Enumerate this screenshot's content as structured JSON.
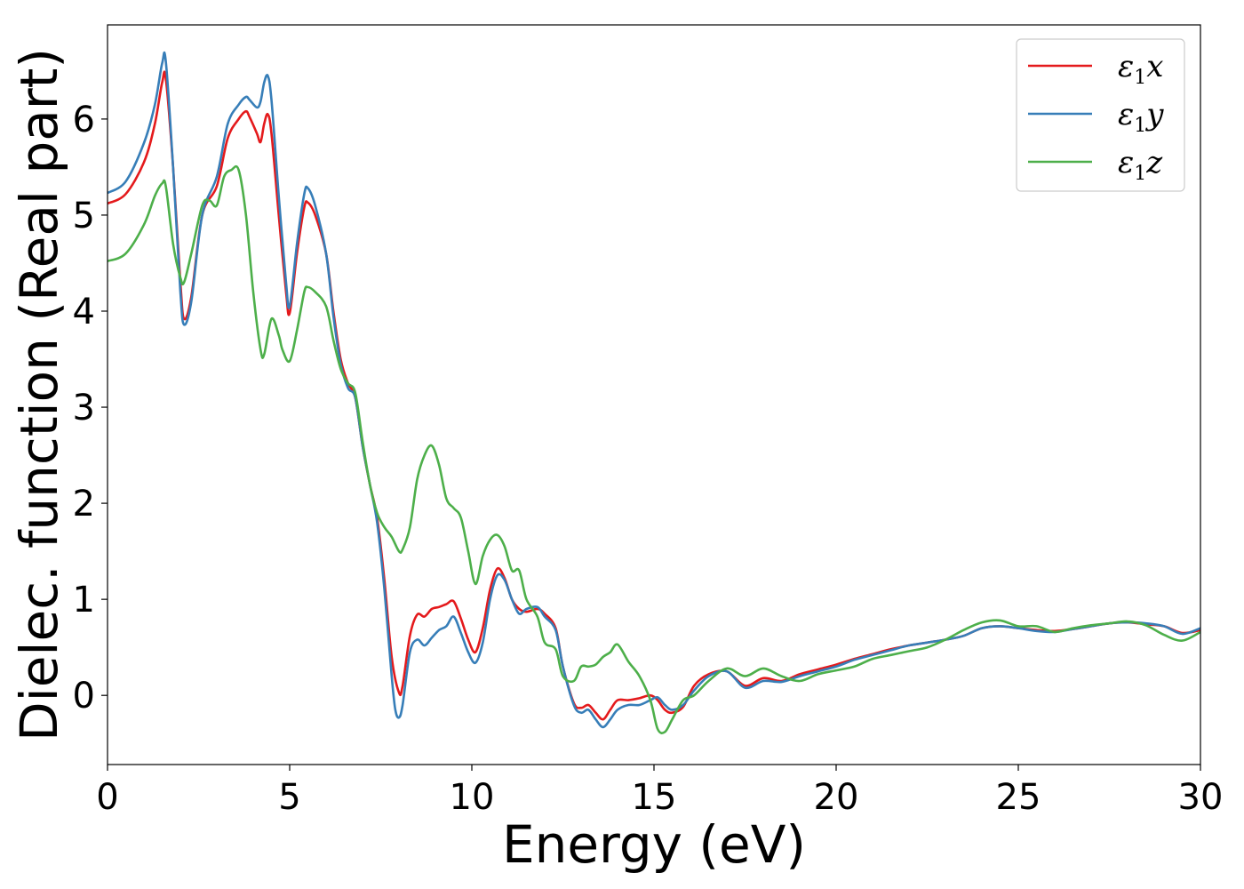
{
  "chart_data": {
    "type": "line",
    "xlabel": "Energy (eV)",
    "ylabel": "Dielec. function (Real part)",
    "xlim": [
      0,
      30
    ],
    "ylim": [
      -0.72,
      6.98
    ],
    "xticks": [
      0,
      5,
      10,
      15,
      20,
      25,
      30
    ],
    "yticks": [
      0,
      1,
      2,
      3,
      4,
      5,
      6
    ],
    "grid": false,
    "legend_position": "top-right",
    "series": [
      {
        "name": "ε1x",
        "base": "ε",
        "sub": "1",
        "var": "x",
        "color": "#e41a1c",
        "x": [
          0,
          0.5,
          1.0,
          1.3,
          1.5,
          1.6,
          1.8,
          2.0,
          2.1,
          2.3,
          2.6,
          3.0,
          3.3,
          3.6,
          3.8,
          3.9,
          4.1,
          4.2,
          4.3,
          4.4,
          4.5,
          4.7,
          4.9,
          5.0,
          5.2,
          5.4,
          5.5,
          5.7,
          6.0,
          6.2,
          6.4,
          6.6,
          6.8,
          7.0,
          7.2,
          7.4,
          7.6,
          7.8,
          8.0,
          8.1,
          8.3,
          8.5,
          8.7,
          8.9,
          9.1,
          9.3,
          9.5,
          9.7,
          9.9,
          10.1,
          10.3,
          10.5,
          10.7,
          10.9,
          11.1,
          11.3,
          11.5,
          11.8,
          12.0,
          12.3,
          12.5,
          12.8,
          13.0,
          13.2,
          13.4,
          13.6,
          13.8,
          14.0,
          14.3,
          14.6,
          14.9,
          15.1,
          15.3,
          15.5,
          15.8,
          16.1,
          16.5,
          17.0,
          17.5,
          18.0,
          18.5,
          19.0,
          19.5,
          20.0,
          20.5,
          21.0,
          21.5,
          22.0,
          22.5,
          23.0,
          23.5,
          24.0,
          24.5,
          25.0,
          25.5,
          26.0,
          26.5,
          27.0,
          27.5,
          28.0,
          28.5,
          29.0,
          29.5,
          30.0
        ],
        "y": [
          5.12,
          5.22,
          5.55,
          5.95,
          6.38,
          6.42,
          5.5,
          4.3,
          3.92,
          4.15,
          5.0,
          5.3,
          5.8,
          6.0,
          6.08,
          6.02,
          5.85,
          5.76,
          5.95,
          6.05,
          5.85,
          5.0,
          4.2,
          3.98,
          4.6,
          5.08,
          5.13,
          5.0,
          4.6,
          4.0,
          3.5,
          3.25,
          3.1,
          2.6,
          2.2,
          1.85,
          1.2,
          0.4,
          0.03,
          0.1,
          0.62,
          0.84,
          0.82,
          0.9,
          0.92,
          0.95,
          0.98,
          0.8,
          0.58,
          0.45,
          0.7,
          1.1,
          1.32,
          1.22,
          1.0,
          0.9,
          0.87,
          0.9,
          0.85,
          0.7,
          0.3,
          -0.08,
          -0.13,
          -0.1,
          -0.18,
          -0.25,
          -0.15,
          -0.05,
          -0.05,
          -0.03,
          0.0,
          -0.05,
          -0.15,
          -0.18,
          -0.12,
          0.1,
          0.22,
          0.25,
          0.1,
          0.18,
          0.15,
          0.22,
          0.27,
          0.32,
          0.38,
          0.43,
          0.48,
          0.52,
          0.55,
          0.58,
          0.62,
          0.7,
          0.72,
          0.7,
          0.68,
          0.67,
          0.69,
          0.72,
          0.75,
          0.76,
          0.74,
          0.72,
          0.65,
          0.68
        ]
      },
      {
        "name": "ε1y",
        "base": "ε",
        "sub": "1",
        "var": "y",
        "color": "#377eb8",
        "x": [
          0,
          0.5,
          1.0,
          1.3,
          1.5,
          1.6,
          1.8,
          2.0,
          2.1,
          2.3,
          2.6,
          3.0,
          3.3,
          3.6,
          3.8,
          3.9,
          4.1,
          4.2,
          4.3,
          4.4,
          4.5,
          4.7,
          4.9,
          5.0,
          5.2,
          5.4,
          5.5,
          5.7,
          6.0,
          6.2,
          6.4,
          6.6,
          6.8,
          7.0,
          7.2,
          7.4,
          7.6,
          7.8,
          7.9,
          8.0,
          8.1,
          8.3,
          8.5,
          8.7,
          8.9,
          9.1,
          9.3,
          9.5,
          9.7,
          9.9,
          10.1,
          10.3,
          10.5,
          10.7,
          10.9,
          11.1,
          11.3,
          11.5,
          11.8,
          12.0,
          12.3,
          12.5,
          12.8,
          13.0,
          13.2,
          13.4,
          13.6,
          13.8,
          14.0,
          14.3,
          14.6,
          14.9,
          15.1,
          15.3,
          15.5,
          15.8,
          16.1,
          16.5,
          17.0,
          17.5,
          18.0,
          18.5,
          19.0,
          19.5,
          20.0,
          20.5,
          21.0,
          21.5,
          22.0,
          22.5,
          23.0,
          23.5,
          24.0,
          24.5,
          25.0,
          25.5,
          26.0,
          26.5,
          27.0,
          27.5,
          28.0,
          28.5,
          29.0,
          29.5,
          30.0
        ],
        "y": [
          5.23,
          5.35,
          5.75,
          6.15,
          6.58,
          6.6,
          5.5,
          4.2,
          3.86,
          4.1,
          5.0,
          5.4,
          5.95,
          6.15,
          6.23,
          6.2,
          6.12,
          6.18,
          6.38,
          6.45,
          6.2,
          5.2,
          4.3,
          4.05,
          4.7,
          5.22,
          5.28,
          5.1,
          4.6,
          3.95,
          3.45,
          3.2,
          3.1,
          2.6,
          2.2,
          1.8,
          1.1,
          0.2,
          -0.15,
          -0.23,
          -0.1,
          0.45,
          0.58,
          0.52,
          0.6,
          0.68,
          0.72,
          0.82,
          0.65,
          0.45,
          0.34,
          0.55,
          1.0,
          1.25,
          1.2,
          1.0,
          0.85,
          0.9,
          0.92,
          0.82,
          0.68,
          0.3,
          -0.1,
          -0.18,
          -0.15,
          -0.25,
          -0.33,
          -0.25,
          -0.15,
          -0.1,
          -0.1,
          -0.05,
          -0.02,
          -0.1,
          -0.15,
          -0.1,
          0.05,
          0.2,
          0.25,
          0.08,
          0.15,
          0.14,
          0.2,
          0.25,
          0.3,
          0.37,
          0.42,
          0.47,
          0.52,
          0.55,
          0.58,
          0.62,
          0.7,
          0.72,
          0.7,
          0.67,
          0.66,
          0.69,
          0.72,
          0.75,
          0.76,
          0.75,
          0.72,
          0.64,
          0.7
        ]
      },
      {
        "name": "ε1z",
        "base": "ε",
        "sub": "1",
        "var": "z",
        "color": "#4daf4a",
        "x": [
          0,
          0.5,
          1.0,
          1.3,
          1.5,
          1.6,
          1.8,
          2.0,
          2.1,
          2.3,
          2.6,
          2.8,
          3.0,
          3.2,
          3.4,
          3.6,
          3.8,
          4.0,
          4.2,
          4.3,
          4.5,
          4.7,
          4.8,
          5.0,
          5.2,
          5.4,
          5.5,
          5.7,
          6.0,
          6.2,
          6.4,
          6.6,
          6.8,
          7.0,
          7.2,
          7.4,
          7.6,
          7.8,
          8.0,
          8.1,
          8.3,
          8.5,
          8.7,
          8.9,
          9.1,
          9.3,
          9.5,
          9.7,
          9.9,
          10.1,
          10.3,
          10.5,
          10.7,
          10.9,
          11.1,
          11.3,
          11.5,
          11.8,
          12.0,
          12.3,
          12.5,
          12.8,
          13.0,
          13.2,
          13.4,
          13.6,
          13.8,
          14.0,
          14.3,
          14.6,
          14.9,
          15.1,
          15.3,
          15.5,
          15.8,
          16.1,
          16.5,
          17.0,
          17.5,
          18.0,
          18.5,
          19.0,
          19.5,
          20.0,
          20.5,
          21.0,
          21.5,
          22.0,
          22.5,
          23.0,
          23.5,
          24.0,
          24.5,
          25.0,
          25.5,
          26.0,
          26.5,
          27.0,
          27.5,
          28.0,
          28.5,
          29.0,
          29.5,
          30.0
        ],
        "y": [
          4.52,
          4.6,
          4.9,
          5.2,
          5.33,
          5.3,
          4.7,
          4.35,
          4.3,
          4.6,
          5.1,
          5.15,
          5.1,
          5.4,
          5.47,
          5.47,
          5.0,
          4.2,
          3.6,
          3.55,
          3.92,
          3.75,
          3.6,
          3.48,
          3.8,
          4.2,
          4.25,
          4.2,
          4.05,
          3.7,
          3.4,
          3.25,
          3.15,
          2.65,
          2.2,
          1.9,
          1.75,
          1.65,
          1.5,
          1.52,
          1.75,
          2.25,
          2.5,
          2.6,
          2.4,
          2.05,
          1.95,
          1.85,
          1.5,
          1.16,
          1.45,
          1.62,
          1.67,
          1.55,
          1.3,
          1.3,
          1.0,
          0.82,
          0.55,
          0.48,
          0.2,
          0.15,
          0.3,
          0.3,
          0.32,
          0.4,
          0.45,
          0.53,
          0.35,
          0.2,
          -0.05,
          -0.35,
          -0.38,
          -0.25,
          -0.05,
          0.0,
          0.15,
          0.28,
          0.2,
          0.28,
          0.2,
          0.15,
          0.22,
          0.26,
          0.3,
          0.38,
          0.42,
          0.46,
          0.5,
          0.58,
          0.68,
          0.76,
          0.78,
          0.72,
          0.72,
          0.66,
          0.7,
          0.73,
          0.75,
          0.77,
          0.73,
          0.63,
          0.57,
          0.66
        ]
      }
    ]
  }
}
